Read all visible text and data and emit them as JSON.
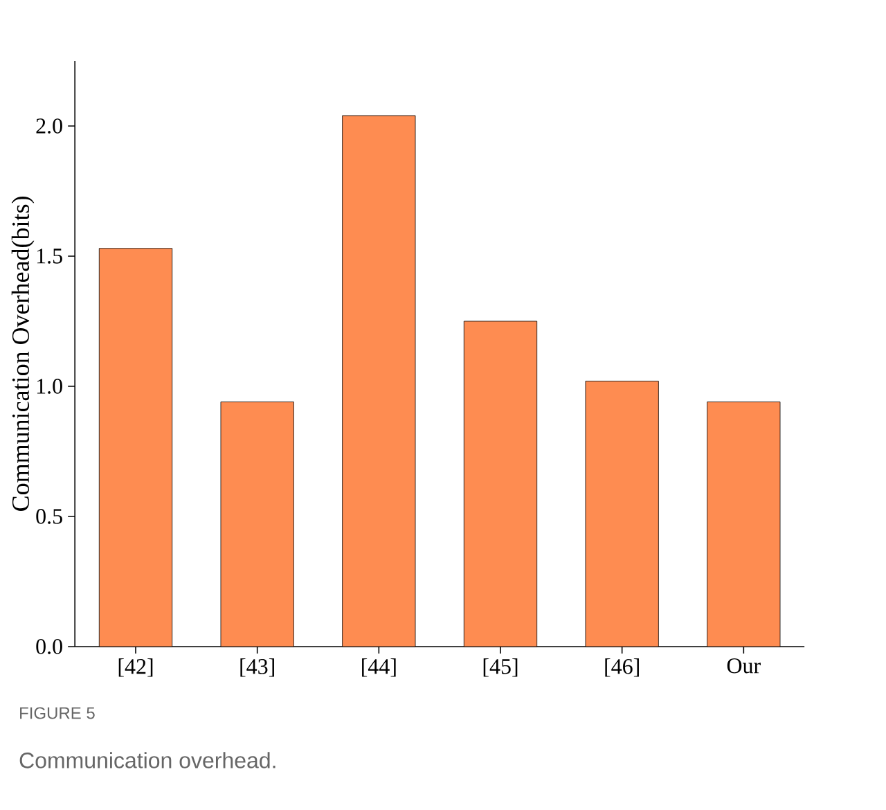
{
  "chart_data": {
    "type": "bar",
    "ylabel": "Communication Overhead(bits)",
    "categories": [
      "[42]",
      "[43]",
      "[44]",
      "[45]",
      "[46]",
      "Our"
    ],
    "values": [
      1.53,
      0.94,
      2.04,
      1.25,
      1.02,
      0.94
    ],
    "color": "#fe8c51",
    "ylim": [
      0,
      2.25
    ],
    "yticks": [
      {
        "value": 0,
        "label": "0.0"
      },
      {
        "value": 0.5,
        "label": "0.5"
      },
      {
        "value": 1.0,
        "label": "1.0"
      },
      {
        "value": 1.5,
        "label": "1.5"
      },
      {
        "value": 2.0,
        "label": "2.0"
      }
    ],
    "grid": false,
    "annotations": [
      "FIGURE 5",
      "Communication overhead."
    ]
  }
}
